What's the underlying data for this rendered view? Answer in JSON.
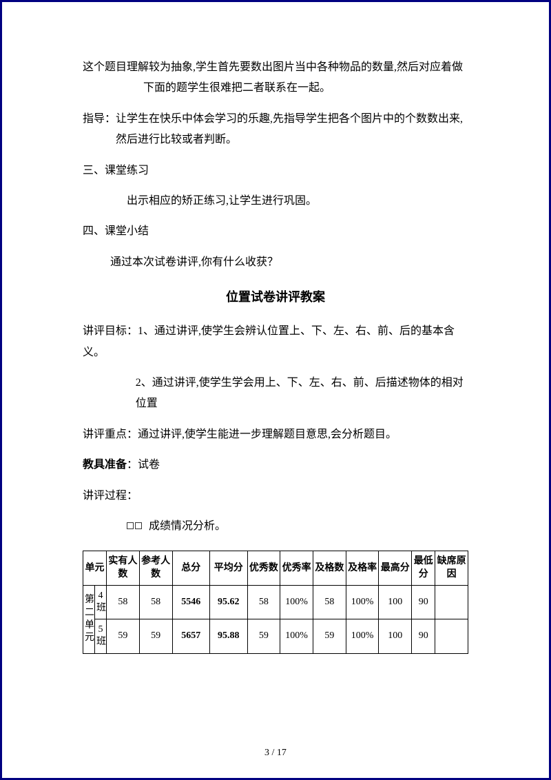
{
  "paragraphs": {
    "p1": "这个题目理解较为抽象,学生首先要数出图片当中各种物品的数量,然后对应着做下面的题学生很难把二者联系在一起。",
    "p2": "指导：让学生在快乐中体会学习的乐趣,先指导学生把各个图片中的个数数出来,然后进行比较或者判断。",
    "s3": "三、课堂练习",
    "p3": "出示相应的矫正练习,让学生进行巩固。",
    "s4": "四、课堂小结",
    "p4": "通过本次试卷讲评,你有什么收获？",
    "title": "位置试卷讲评教案",
    "goal1": "讲评目标：1、通过讲评,使学生会辨认位置上、下、左、右、前、后的基本含义。",
    "goal1sub": "",
    "goal2": "2、通过讲评,使学生学会用上、下、左、右、前、后描述物体的相对位置",
    "focus": "讲评重点：通过讲评,使学生能进一步理解题目意思,会分析题目。",
    "tools_label": "教具准备",
    "tools_value": "：试卷",
    "process": "讲评过程：",
    "result": "成绩情况分析。"
  },
  "table": {
    "headers": [
      "单元",
      "",
      "实有人数",
      "参考人数",
      "总分",
      "平均分",
      "优秀数",
      "优秀率",
      "及格数",
      "及格率",
      "最高分",
      "最低分",
      "缺席原因"
    ],
    "unit": "第二单元",
    "rows": [
      {
        "class": "4班",
        "实有": "58",
        "参考": "58",
        "总分": "5546",
        "平均": "95.62",
        "优秀数": "58",
        "优秀率": "100%",
        "及格数": "58",
        "及格率": "100%",
        "最高": "100",
        "最低": "90",
        "缺席": ""
      },
      {
        "class": "5班",
        "实有": "59",
        "参考": "59",
        "总分": "5657",
        "平均": "95.88",
        "优秀数": "59",
        "优秀率": "100%",
        "及格数": "59",
        "及格率": "100%",
        "最高": "100",
        "最低": "90",
        "缺席": ""
      }
    ]
  },
  "footer": "3 / 17"
}
